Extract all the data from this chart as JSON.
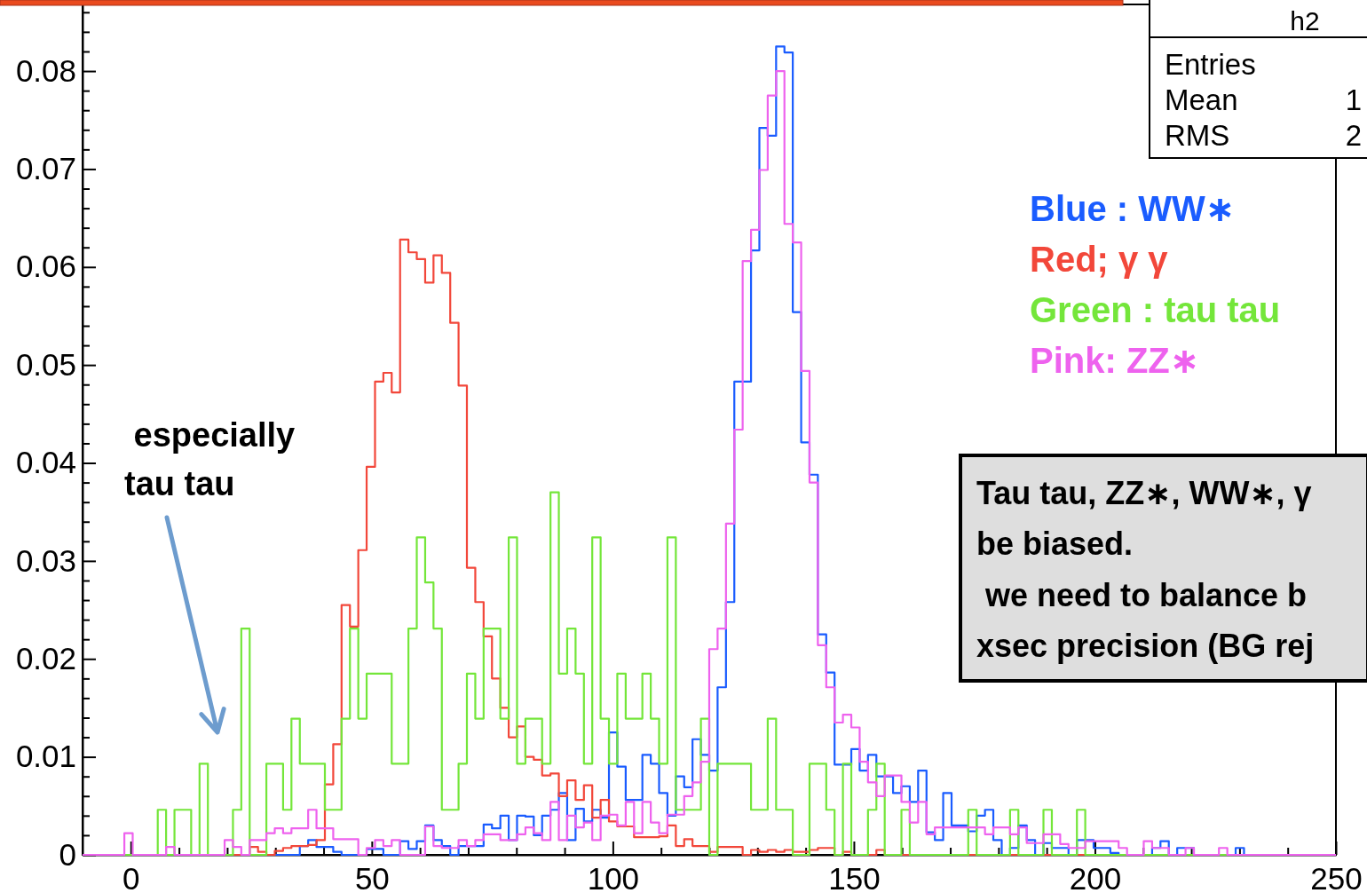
{
  "chart_data": {
    "type": "histogram",
    "bins": [
      -10,
      -8.27,
      -6.53,
      -4.8,
      -3.07,
      -1.33,
      0.4,
      2.13,
      3.87,
      5.6,
      7.33,
      9.07,
      10.8,
      12.53,
      14.27,
      16,
      17.73,
      19.47,
      21.2,
      22.93,
      24.67,
      26.4,
      28.13,
      29.87,
      31.6,
      33.33,
      35.07,
      36.8,
      38.53,
      40.27,
      42,
      43.73,
      45.47,
      47.2,
      48.93,
      50.67,
      52.4,
      54.13,
      55.87,
      57.6,
      59.33,
      61.07,
      62.8,
      64.53,
      66.27,
      68,
      69.73,
      71.47,
      73.2,
      74.93,
      76.67,
      78.4,
      80.13,
      81.87,
      83.6,
      85.33,
      87.07,
      88.8,
      90.53,
      92.27,
      94,
      95.73,
      97.47,
      99.2,
      100.93,
      102.67,
      104.4,
      106.13,
      107.87,
      109.6,
      111.33,
      113.07,
      114.8,
      116.53,
      118.27,
      120,
      121.73,
      123.47,
      125.2,
      126.93,
      128.67,
      130.4,
      132.13,
      133.87,
      135.6,
      137.33,
      139.07,
      140.8,
      142.53,
      144.27,
      146,
      147.73,
      149.47,
      151.2,
      152.93,
      154.67,
      156.4,
      158.13,
      159.87,
      161.6,
      163.33,
      165.07,
      166.8,
      168.53,
      170.27,
      172,
      173.73,
      175.47,
      177.2,
      178.93,
      180.67,
      182.4,
      184.13,
      185.87,
      187.6,
      189.33,
      191.07,
      192.8,
      194.53,
      196.27,
      198,
      199.73,
      201.47,
      203.2,
      204.93,
      206.67,
      208.4,
      210.13,
      211.87,
      213.6,
      215.33,
      217.07,
      218.8,
      220.53,
      222.27,
      224,
      225.73,
      227.47,
      229.2,
      230.93,
      232.67,
      234.4,
      236.13,
      237.87,
      239.6,
      241.33,
      243.07,
      244.8,
      246.53,
      248.27,
      250
    ],
    "series": [
      {
        "name": "Blue : WW∗",
        "color": "#1a5cff",
        "values": [
          0,
          0,
          0,
          0,
          0,
          0,
          0,
          0,
          0,
          0,
          0,
          0,
          0,
          0,
          0,
          0,
          0,
          0,
          0,
          0,
          0,
          0,
          0,
          0,
          0,
          0,
          0.0009,
          0.0015,
          0.0008,
          0.0008,
          0.0003,
          0,
          0,
          0,
          0.0006,
          0.0006,
          0,
          0,
          0.0014,
          0.0006,
          0.0014,
          0.003,
          0.0015,
          0.0009,
          0,
          0.0009,
          0.0009,
          0.0009,
          0.0031,
          0.0027,
          0.004,
          0.0015,
          0.004,
          0.0039,
          0.002,
          0.004,
          0.0046,
          0.0063,
          0.0015,
          0.0047,
          0.0034,
          0.0046,
          0.0038,
          0.0125,
          0.009,
          0.0056,
          0.0056,
          0.0102,
          0.0093,
          0.0063,
          0.004,
          0.008,
          0.0069,
          0.0118,
          0.0102,
          0.0086,
          0.0171,
          0.0258,
          0.0483,
          0.0483,
          0.0617,
          0.0742,
          0.0734,
          0.0825,
          0.0819,
          0.0554,
          0.0421,
          0.0388,
          0.0225,
          0.0186,
          0.0092,
          0.0092,
          0.0108,
          0.0086,
          0.0102,
          0.008,
          0.008,
          0.0063,
          0.007,
          0.0054,
          0.0086,
          0.0023,
          0.0015,
          0.0063,
          0.003,
          0.003,
          0.0024,
          0.004,
          0.0046,
          0.0015,
          0,
          0.0007,
          0.003,
          0.0015,
          0,
          0.0012,
          0.0007,
          0.0007,
          0,
          0.0015,
          0.0015,
          0.0007,
          0.0007,
          0.0002,
          0,
          0,
          0,
          0,
          0.0007,
          0.0014,
          0,
          0.0007,
          0.0007,
          0,
          0,
          0,
          0,
          0,
          0.0007,
          0,
          0,
          0,
          0,
          0,
          0,
          0,
          0,
          0,
          0,
          0
        ]
      },
      {
        "name": "Red; γ γ",
        "color": "#f2473a",
        "values": [
          0,
          0,
          0,
          0,
          0,
          0,
          0,
          0,
          0,
          0,
          0,
          0,
          0,
          0,
          0,
          0,
          0,
          0,
          0,
          0,
          0.0008,
          0.0003,
          0,
          0.0004,
          0.0007,
          0.0009,
          0.0009,
          0.001,
          0.0015,
          0.0072,
          0.0113,
          0.0255,
          0.0233,
          0.0311,
          0.0396,
          0.0483,
          0.0492,
          0.0472,
          0.0628,
          0.0615,
          0.0608,
          0.0584,
          0.0612,
          0.0594,
          0.0543,
          0.0479,
          0.0293,
          0.0258,
          0.0223,
          0.018,
          0.015,
          0.012,
          0.0131,
          0.01,
          0.0097,
          0.0081,
          0.0083,
          0.006,
          0.0076,
          0.0056,
          0.0071,
          0.0038,
          0.0056,
          0.0034,
          0.0029,
          0.0029,
          0.0018,
          0.0018,
          0.0018,
          0.0019,
          0.003,
          0.0009,
          0.0016,
          0.0009,
          0.0009,
          0.0003,
          0.0008,
          0.0008,
          0.0008,
          0,
          0.0005,
          0.0003,
          0.0005,
          0.0003,
          0.0005,
          0.0003,
          0.0003,
          0.0005,
          0.0007,
          0.0007,
          0,
          0.0003,
          0,
          0,
          0,
          0.0005,
          0,
          0,
          0,
          0,
          0,
          0,
          0,
          0,
          0,
          0,
          0,
          0,
          0,
          0,
          0,
          0,
          0,
          0,
          0,
          0,
          0,
          0,
          0,
          0,
          0,
          0,
          0,
          0,
          0,
          0,
          0,
          0,
          0,
          0,
          0,
          0,
          0,
          0,
          0,
          0,
          0,
          0,
          0,
          0,
          0,
          0,
          0,
          0,
          0,
          0,
          0,
          0,
          0,
          0
        ]
      },
      {
        "name": "Green : tau tau",
        "color": "#74e63a",
        "values": [
          0,
          0,
          0,
          0,
          0,
          0,
          0,
          0,
          0,
          0.0046,
          0,
          0.0046,
          0.0046,
          0,
          0.0093,
          0,
          0,
          0,
          0.0046,
          0.0231,
          0,
          0,
          0.0093,
          0.0093,
          0.0046,
          0.0139,
          0.0093,
          0.0093,
          0.0093,
          0.0046,
          0.0046,
          0.0139,
          0.0231,
          0.0139,
          0.0185,
          0.0185,
          0.0185,
          0.0093,
          0.0093,
          0.0231,
          0.0324,
          0.0278,
          0.0231,
          0.0046,
          0.0046,
          0.0093,
          0.0185,
          0.0139,
          0.0231,
          0.0231,
          0.0139,
          0.0324,
          0.0093,
          0.0139,
          0.0139,
          0.0093,
          0.037,
          0.0185,
          0.0231,
          0.0185,
          0.0093,
          0.0324,
          0.0139,
          0.0093,
          0.0185,
          0.0139,
          0.0139,
          0.0185,
          0.0139,
          0.0093,
          0.0324,
          0.0046,
          0.0046,
          0.0046,
          0.0139,
          0,
          0.0093,
          0.0093,
          0.0093,
          0.0093,
          0.0046,
          0.0046,
          0.0139,
          0.0046,
          0.0046,
          0,
          0,
          0.0093,
          0.0093,
          0.0046,
          0,
          0.0093,
          0,
          0,
          0.0046,
          0.0093,
          0,
          0,
          0.0046,
          0,
          0,
          0,
          0,
          0,
          0,
          0,
          0.0046,
          0,
          0,
          0,
          0,
          0.0046,
          0,
          0,
          0,
          0.0046,
          0,
          0,
          0,
          0.0046,
          0,
          0,
          0,
          0,
          0,
          0,
          0,
          0,
          0,
          0,
          0,
          0,
          0,
          0,
          0,
          0,
          0,
          0,
          0,
          0,
          0,
          0,
          0,
          0,
          0,
          0,
          0,
          0,
          0,
          0
        ]
      },
      {
        "name": "Pink: ZZ∗",
        "color": "#ee62ee",
        "values": [
          0,
          0,
          0,
          0,
          0,
          0.0022,
          0,
          0,
          0,
          0,
          0.0008,
          0,
          0,
          0,
          0,
          0,
          0,
          0.0015,
          0.0008,
          0,
          0.0015,
          0.0015,
          0.0022,
          0.0027,
          0.0022,
          0.0027,
          0.0027,
          0.0046,
          0.0027,
          0.0027,
          0.0016,
          0.0016,
          0.0016,
          0,
          0.0007,
          0.0015,
          0.0009,
          0.0015,
          0,
          0,
          0,
          0.0029,
          0.0009,
          0.0007,
          0.0007,
          0.0015,
          0.0009,
          0.0015,
          0.0021,
          0.0021,
          0.0015,
          0.0015,
          0.0021,
          0.0028,
          0.0022,
          0.0015,
          0.0054,
          0.0015,
          0.004,
          0.0028,
          0.0033,
          0.0015,
          0.004,
          0.0041,
          0.003,
          0.0054,
          0.0022,
          0.0054,
          0.0033,
          0.0022,
          0.0041,
          0.0041,
          0.006,
          0.0074,
          0.0095,
          0.021,
          0.0231,
          0.0338,
          0.0434,
          0.0606,
          0.0638,
          0.0699,
          0.0775,
          0.08,
          0.0644,
          0.0625,
          0.0494,
          0.038,
          0.0214,
          0.0171,
          0.0135,
          0.0143,
          0.013,
          0.0095,
          0.0074,
          0.006,
          0.0081,
          0.0081,
          0.0054,
          0.0033,
          0.0054,
          0.0021,
          0.0028,
          0.0028,
          0.0028,
          0.0028,
          0.0028,
          0.0028,
          0.0021,
          0.0028,
          0.0028,
          0.0021,
          0.0028,
          0.0012,
          0.0012,
          0.0021,
          0.0021,
          0.0011,
          0.0007,
          0.0007,
          0.0014,
          0.0014,
          0.0014,
          0.0014,
          0.0007,
          0,
          0,
          0.0014,
          0.0007,
          0.0007,
          0,
          0,
          0.0007,
          0,
          0,
          0,
          0.0007,
          0,
          0,
          0,
          0,
          0,
          0,
          0,
          0,
          0,
          0,
          0,
          0,
          0
        ]
      }
    ],
    "xlim": [
      -10,
      250
    ],
    "xticks": [
      0,
      {
        "value": 10,
        "label": null
      },
      {
        "value": 20,
        "label": null
      },
      {
        "value": 30,
        "label": null
      },
      {
        "value": 40,
        "label": null
      },
      50,
      {
        "value": 60,
        "label": null
      },
      {
        "value": 70,
        "label": null
      },
      {
        "value": 80,
        "label": null
      },
      {
        "value": 90,
        "label": null
      },
      100,
      {
        "value": 110,
        "label": null
      },
      {
        "value": 120,
        "label": null
      },
      {
        "value": 130,
        "label": null
      },
      {
        "value": 140,
        "label": null
      },
      150,
      {
        "value": 160,
        "label": null
      },
      {
        "value": 170,
        "label": null
      },
      {
        "value": 180,
        "label": null
      },
      {
        "value": 190,
        "label": null
      },
      200,
      {
        "value": 210,
        "label": null
      },
      {
        "value": 220,
        "label": null
      },
      {
        "value": 230,
        "label": null
      },
      {
        "value": 240,
        "label": null
      },
      250
    ],
    "ylim": [
      0,
      0.0868
    ],
    "yticks": [
      0,
      {
        "value": 0.002,
        "label": null
      },
      {
        "value": 0.004,
        "label": null
      },
      {
        "value": 0.006,
        "label": null
      },
      {
        "value": 0.008,
        "label": null
      },
      0.01,
      {
        "value": 0.012,
        "label": null
      },
      {
        "value": 0.014,
        "label": null
      },
      {
        "value": 0.016,
        "label": null
      },
      {
        "value": 0.018,
        "label": null
      },
      0.02,
      {
        "value": 0.022,
        "label": null
      },
      {
        "value": 0.024,
        "label": null
      },
      {
        "value": 0.026,
        "label": null
      },
      {
        "value": 0.028,
        "label": null
      },
      0.03,
      {
        "value": 0.032,
        "label": null
      },
      {
        "value": 0.034,
        "label": null
      },
      {
        "value": 0.036,
        "label": null
      },
      {
        "value": 0.038,
        "label": null
      },
      0.04,
      {
        "value": 0.042,
        "label": null
      },
      {
        "value": 0.044,
        "label": null
      },
      {
        "value": 0.046,
        "label": null
      },
      {
        "value": 0.048,
        "label": null
      },
      0.05,
      {
        "value": 0.052,
        "label": null
      },
      {
        "value": 0.054,
        "label": null
      },
      {
        "value": 0.056,
        "label": null
      },
      {
        "value": 0.058,
        "label": null
      },
      0.06,
      {
        "value": 0.062,
        "label": null
      },
      {
        "value": 0.064,
        "label": null
      },
      {
        "value": 0.066,
        "label": null
      },
      {
        "value": 0.068,
        "label": null
      },
      0.07,
      {
        "value": 0.072,
        "label": null
      },
      {
        "value": 0.074,
        "label": null
      },
      {
        "value": 0.076,
        "label": null
      },
      {
        "value": 0.078,
        "label": null
      },
      0.08,
      {
        "value": 0.082,
        "label": null
      },
      {
        "value": 0.084,
        "label": null
      },
      {
        "value": 0.086,
        "label": null
      }
    ],
    "legend": "right",
    "annotations": [
      " especially\ntau tau",
      "Tau tau, ZZ∗, WW∗, γ\nbe biased.\n we need to balance b\nxsec precision (BG rej",
      "h2",
      "Entries",
      "Mean",
      "RMS",
      "1",
      "2"
    ]
  }
}
